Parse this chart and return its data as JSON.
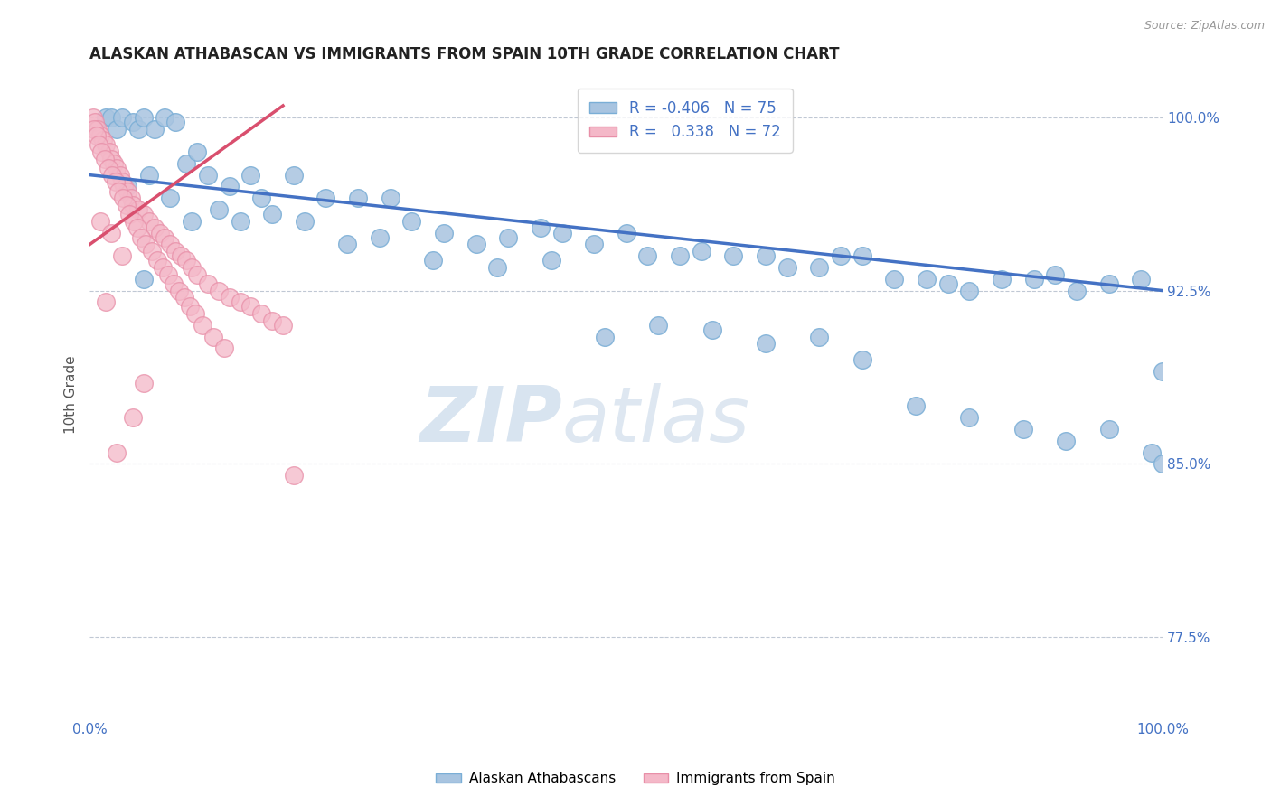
{
  "title": "ALASKAN ATHABASCAN VS IMMIGRANTS FROM SPAIN 10TH GRADE CORRELATION CHART",
  "source": "Source: ZipAtlas.com",
  "ylabel": "10th Grade",
  "legend_blue_r": "-0.406",
  "legend_blue_n": "75",
  "legend_pink_r": "0.338",
  "legend_pink_n": "72",
  "legend_label_blue": "Alaskan Athabascans",
  "legend_label_pink": "Immigrants from Spain",
  "x_min": 0.0,
  "x_max": 100.0,
  "y_min": 74.0,
  "y_max": 102.0,
  "blue_color": "#a8c4e0",
  "blue_edge": "#7aaed6",
  "pink_color": "#f4b8c8",
  "pink_edge": "#e88fa8",
  "blue_line_color": "#4472c4",
  "pink_line_color": "#d94f6e",
  "grid_color": "#c0c8d4",
  "axis_label_color": "#4472c4",
  "blue_line_x0": 0.0,
  "blue_line_y0": 97.5,
  "blue_line_x1": 100.0,
  "blue_line_y1": 92.5,
  "pink_line_x0": 0.0,
  "pink_line_y0": 94.5,
  "pink_line_x1": 18.0,
  "pink_line_y1": 100.5,
  "blue_scatter_x": [
    1.5,
    2.0,
    2.5,
    3.0,
    4.0,
    4.5,
    5.0,
    6.0,
    7.0,
    8.0,
    9.0,
    10.0,
    11.0,
    13.0,
    15.0,
    17.0,
    19.0,
    22.0,
    25.0,
    28.0,
    30.0,
    33.0,
    36.0,
    39.0,
    42.0,
    44.0,
    47.0,
    50.0,
    52.0,
    55.0,
    57.0,
    60.0,
    63.0,
    65.0,
    68.0,
    70.0,
    72.0,
    75.0,
    78.0,
    80.0,
    82.0,
    85.0,
    88.0,
    90.0,
    92.0,
    95.0,
    98.0,
    100.0,
    3.5,
    5.5,
    7.5,
    9.5,
    12.0,
    14.0,
    16.0,
    20.0,
    24.0,
    27.0,
    32.0,
    38.0,
    43.0,
    48.0,
    53.0,
    58.0,
    63.0,
    68.0,
    72.0,
    77.0,
    82.0,
    87.0,
    91.0,
    95.0,
    99.0,
    100.0,
    5.0
  ],
  "blue_scatter_y": [
    100.0,
    100.0,
    99.5,
    100.0,
    99.8,
    99.5,
    100.0,
    99.5,
    100.0,
    99.8,
    98.0,
    98.5,
    97.5,
    97.0,
    97.5,
    95.8,
    97.5,
    96.5,
    96.5,
    96.5,
    95.5,
    95.0,
    94.5,
    94.8,
    95.2,
    95.0,
    94.5,
    95.0,
    94.0,
    94.0,
    94.2,
    94.0,
    94.0,
    93.5,
    93.5,
    94.0,
    94.0,
    93.0,
    93.0,
    92.8,
    92.5,
    93.0,
    93.0,
    93.2,
    92.5,
    92.8,
    93.0,
    89.0,
    97.0,
    97.5,
    96.5,
    95.5,
    96.0,
    95.5,
    96.5,
    95.5,
    94.5,
    94.8,
    93.8,
    93.5,
    93.8,
    90.5,
    91.0,
    90.8,
    90.2,
    90.5,
    89.5,
    87.5,
    87.0,
    86.5,
    86.0,
    86.5,
    85.5,
    85.0,
    93.0
  ],
  "pink_scatter_x": [
    0.3,
    0.5,
    0.7,
    1.0,
    1.2,
    1.5,
    1.8,
    2.0,
    2.2,
    2.5,
    2.8,
    3.0,
    3.2,
    3.5,
    3.8,
    4.0,
    4.5,
    5.0,
    5.5,
    6.0,
    6.5,
    7.0,
    7.5,
    8.0,
    8.5,
    9.0,
    9.5,
    10.0,
    11.0,
    12.0,
    13.0,
    14.0,
    15.0,
    16.0,
    17.0,
    18.0,
    0.4,
    0.6,
    0.8,
    1.1,
    1.4,
    1.7,
    2.1,
    2.4,
    2.7,
    3.1,
    3.4,
    3.7,
    4.1,
    4.4,
    4.8,
    5.2,
    5.8,
    6.3,
    6.8,
    7.3,
    7.8,
    8.3,
    8.8,
    9.3,
    9.8,
    10.5,
    11.5,
    12.5,
    1.0,
    2.0,
    3.0,
    1.5,
    5.0,
    4.0,
    2.5,
    19.0
  ],
  "pink_scatter_y": [
    100.0,
    99.8,
    99.5,
    99.2,
    99.0,
    98.8,
    98.5,
    98.2,
    98.0,
    97.8,
    97.5,
    97.2,
    97.0,
    96.8,
    96.5,
    96.2,
    96.0,
    95.8,
    95.5,
    95.2,
    95.0,
    94.8,
    94.5,
    94.2,
    94.0,
    93.8,
    93.5,
    93.2,
    92.8,
    92.5,
    92.2,
    92.0,
    91.8,
    91.5,
    91.2,
    91.0,
    99.5,
    99.2,
    98.8,
    98.5,
    98.2,
    97.8,
    97.5,
    97.2,
    96.8,
    96.5,
    96.2,
    95.8,
    95.5,
    95.2,
    94.8,
    94.5,
    94.2,
    93.8,
    93.5,
    93.2,
    92.8,
    92.5,
    92.2,
    91.8,
    91.5,
    91.0,
    90.5,
    90.0,
    95.5,
    95.0,
    94.0,
    92.0,
    88.5,
    87.0,
    85.5,
    84.5
  ]
}
